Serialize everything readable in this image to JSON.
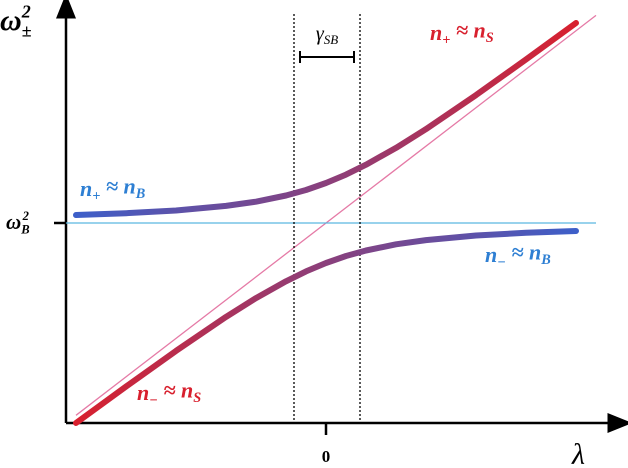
{
  "chart_data": {
    "type": "line",
    "x_label": [
      "λ"
    ],
    "y_label": [
      "ω",
      "±",
      "2"
    ],
    "xlim": [
      -2.6,
      2.7
    ],
    "ylim": [
      0,
      4.18
    ],
    "xticks": [
      {
        "value": 0,
        "label": [
          "0"
        ]
      }
    ],
    "yticks": [
      {
        "value": 2,
        "label": [
          "ω",
          "B",
          "2"
        ]
      }
    ],
    "x": [
      -2.5,
      -2.0,
      -1.5,
      -1.0,
      -0.7,
      -0.4,
      -0.2,
      0,
      0.2,
      0.4,
      0.7,
      1.0,
      1.5,
      2.0,
      2.5
    ],
    "series": [
      {
        "colors": [
          "#3d5fc9",
          "#d8202e"
        ],
        "values": [
          2.08,
          2.098,
          2.125,
          2.171,
          2.213,
          2.275,
          2.33,
          2.4,
          2.484,
          2.583,
          2.751,
          2.939,
          3.279,
          3.636,
          4.0
        ]
      },
      {
        "colors": [
          "#d8202e",
          "#3d5fc9"
        ],
        "values": [
          0.0,
          0.364,
          0.721,
          1.061,
          1.249,
          1.417,
          1.516,
          1.6,
          1.67,
          1.725,
          1.787,
          1.829,
          1.875,
          1.902,
          1.92
        ]
      }
    ],
    "diabatic": [
      {
        "color": "#e57aa6",
        "x": [
          -2.5,
          2.7
        ],
        "values": [
          0.077,
          4.076
        ]
      },
      {
        "color": "#5bb8e0",
        "x": [
          -2.6,
          2.7
        ],
        "values": [
          2.0,
          2.0
        ]
      }
    ],
    "vlines": [
      -0.32,
      0.34
    ],
    "gap_label": [
      "γ",
      "SB"
    ],
    "annotations": [
      {
        "color": "#d8202e",
        "text": [
          "n",
          "+",
          " ≈ n",
          "S"
        ]
      },
      {
        "color": "#2e7fd3",
        "text": [
          "n",
          "+",
          " ≈ n",
          "B"
        ]
      },
      {
        "color": "#2e7fd3",
        "text": [
          "n",
          "−",
          " ≈ n",
          "B"
        ]
      },
      {
        "color": "#d8202e",
        "text": [
          "n",
          "−",
          " ≈ n",
          "S"
        ]
      }
    ]
  }
}
